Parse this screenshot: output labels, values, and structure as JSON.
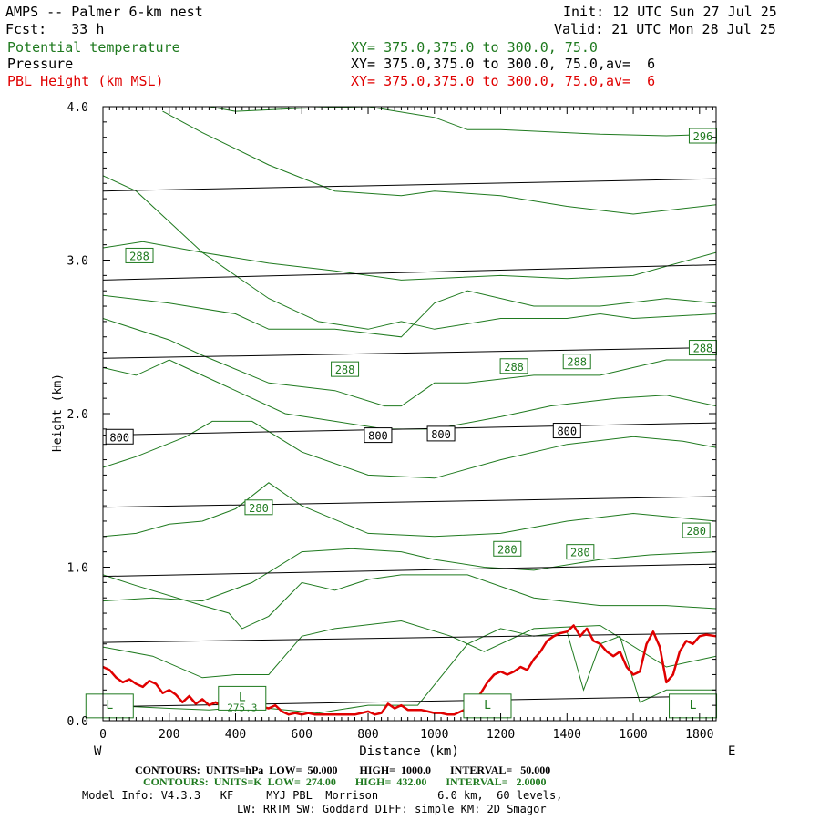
{
  "header": {
    "title": "AMPS -- Palmer 6-km nest",
    "fcst": "Fcst:   33 h",
    "init": "Init: 12 UTC Sun 27 Jul 25",
    "valid": "Valid: 21 UTC Mon 28 Jul 25",
    "field1_name": "Potential temperature",
    "field1_xy": "XY= 375.0,375.0 to 300.0, 75.0",
    "field2_name": "Pressure",
    "field2_xy": "XY= 375.0,375.0 to 300.0, 75.0,av=  6",
    "field3_name": "PBL Height (km MSL)",
    "field3_xy": "XY= 375.0,375.0 to 300.0, 75.0,av=  6"
  },
  "footer": {
    "contours_p": "CONTOURS:  UNITS=hPa  LOW=  50.000        HIGH=  1000.0       INTERVAL=   50.000",
    "contours_t": "CONTOURS:  UNITS=K  LOW=  274.00       HIGH=  432.00       INTERVAL=   2.0000",
    "model1": "Model Info: V4.3.3   KF     MYJ PBL  Morrison         6.0 km,  60 levels,",
    "model2": "LW: RRTM SW: Goddard DIFF: simple KM: 2D Smagor"
  },
  "colors": {
    "theta": "#1f7a1f",
    "pressure": "#000000",
    "pbl": "#e00000"
  },
  "chart_data": {
    "type": "line",
    "xlabel": "Distance (km)",
    "ylabel": "Height (km)",
    "xlim": [
      0,
      1850
    ],
    "ylim": [
      0,
      4.0
    ],
    "x_ticks": [
      0,
      200,
      400,
      600,
      800,
      1000,
      1200,
      1400,
      1600,
      1800
    ],
    "y_ticks": [
      0.0,
      1.0,
      2.0,
      3.0,
      4.0
    ],
    "x_tick_labels": [
      "0",
      "200",
      "400",
      "600",
      "800",
      "1000",
      "1200",
      "1400",
      "1600",
      "1800"
    ],
    "y_tick_labels": [
      "0.0",
      "1.0",
      "2.0",
      "3.0",
      "4.0"
    ],
    "left_end": "W",
    "right_end": "E",
    "pressure_contours": [
      {
        "x": [
          0,
          1850
        ],
        "y": [
          3.45,
          3.53
        ]
      },
      {
        "x": [
          0,
          1850
        ],
        "y": [
          2.87,
          2.97
        ]
      },
      {
        "x": [
          0,
          1850
        ],
        "y": [
          2.36,
          2.43
        ]
      },
      {
        "x": [
          0,
          1850
        ],
        "y": [
          1.86,
          1.94
        ]
      },
      {
        "x": [
          0,
          1850
        ],
        "y": [
          1.39,
          1.46
        ]
      },
      {
        "x": [
          0,
          1850
        ],
        "y": [
          0.94,
          1.02
        ]
      },
      {
        "x": [
          0,
          1850
        ],
        "y": [
          0.51,
          0.57
        ]
      },
      {
        "x": [
          0,
          1850
        ],
        "y": [
          0.09,
          0.16
        ]
      }
    ],
    "pressure_labels": [
      {
        "text": "800",
        "x": 50,
        "y": 1.85
      },
      {
        "text": "800",
        "x": 830,
        "y": 1.86
      },
      {
        "text": "800",
        "x": 1020,
        "y": 1.87
      },
      {
        "text": "800",
        "x": 1400,
        "y": 1.89
      }
    ],
    "theta_contours": [
      {
        "x": [
          180,
          300,
          500,
          700,
          900,
          1000,
          1200,
          1400,
          1600,
          1850
        ],
        "y": [
          3.97,
          3.83,
          3.62,
          3.45,
          3.42,
          3.45,
          3.42,
          3.35,
          3.3,
          3.36
        ]
      },
      {
        "x": [
          320,
          400,
          600,
          800,
          1000,
          1100,
          1200,
          1500,
          1700,
          1850
        ],
        "y": [
          4.0,
          3.97,
          3.99,
          4.0,
          3.93,
          3.85,
          3.85,
          3.82,
          3.81,
          3.82
        ]
      },
      {
        "x": [
          0,
          100,
          200,
          300,
          400,
          500,
          650,
          800,
          900,
          1000,
          1200,
          1400,
          1500,
          1600,
          1850
        ],
        "y": [
          3.55,
          3.45,
          3.25,
          3.05,
          2.9,
          2.75,
          2.6,
          2.55,
          2.6,
          2.55,
          2.62,
          2.62,
          2.65,
          2.62,
          2.65
        ]
      },
      {
        "x": [
          0,
          120,
          300,
          500,
          700,
          900,
          1000,
          1200,
          1400,
          1600,
          1850
        ],
        "y": [
          3.08,
          3.12,
          3.05,
          2.98,
          2.93,
          2.87,
          2.88,
          2.9,
          2.88,
          2.9,
          3.05
        ]
      },
      {
        "x": [
          0,
          200,
          400,
          500,
          700,
          900,
          1000,
          1100,
          1300,
          1500,
          1700,
          1850
        ],
        "y": [
          2.77,
          2.72,
          2.65,
          2.55,
          2.55,
          2.5,
          2.72,
          2.8,
          2.7,
          2.7,
          2.75,
          2.72
        ]
      },
      {
        "x": [
          0,
          200,
          300,
          500,
          700,
          850,
          900,
          1000,
          1100,
          1300,
          1500,
          1700,
          1850
        ],
        "y": [
          2.62,
          2.48,
          2.38,
          2.2,
          2.15,
          2.05,
          2.05,
          2.2,
          2.2,
          2.25,
          2.25,
          2.35,
          2.35
        ]
      },
      {
        "x": [
          0,
          100,
          200,
          250,
          400,
          550,
          700,
          850,
          1000,
          1200,
          1350,
          1550,
          1700,
          1850
        ],
        "y": [
          2.3,
          2.25,
          2.35,
          2.3,
          2.15,
          2.0,
          1.95,
          1.9,
          1.9,
          1.98,
          2.05,
          2.1,
          2.12,
          2.05
        ]
      },
      {
        "x": [
          0,
          100,
          250,
          330,
          450,
          600,
          800,
          1000,
          1200,
          1400,
          1600,
          1750,
          1850
        ],
        "y": [
          1.65,
          1.72,
          1.85,
          1.95,
          1.95,
          1.75,
          1.6,
          1.58,
          1.7,
          1.8,
          1.85,
          1.82,
          1.78
        ]
      },
      {
        "x": [
          0,
          100,
          200,
          300,
          400,
          500,
          600,
          800,
          1000,
          1200,
          1400,
          1600,
          1700,
          1850
        ],
        "y": [
          1.2,
          1.22,
          1.28,
          1.3,
          1.38,
          1.55,
          1.4,
          1.22,
          1.2,
          1.22,
          1.3,
          1.35,
          1.33,
          1.3
        ]
      },
      {
        "x": [
          0,
          150,
          300,
          450,
          600,
          750,
          900,
          1000,
          1150,
          1300,
          1500,
          1650,
          1850
        ],
        "y": [
          0.78,
          0.8,
          0.78,
          0.9,
          1.1,
          1.12,
          1.1,
          1.05,
          1.0,
          0.98,
          1.05,
          1.08,
          1.1
        ]
      },
      {
        "x": [
          0,
          100,
          300,
          380,
          420,
          500,
          600,
          700,
          800,
          900,
          1100,
          1300,
          1500,
          1700,
          1850
        ],
        "y": [
          0.95,
          0.88,
          0.75,
          0.7,
          0.6,
          0.68,
          0.9,
          0.85,
          0.92,
          0.95,
          0.95,
          0.8,
          0.75,
          0.75,
          0.73
        ]
      },
      {
        "x": [
          0,
          150,
          300,
          400,
          500,
          600,
          700,
          900,
          1050,
          1150,
          1300,
          1500,
          1700,
          1850
        ],
        "y": [
          0.48,
          0.42,
          0.28,
          0.3,
          0.3,
          0.55,
          0.6,
          0.65,
          0.55,
          0.45,
          0.6,
          0.62,
          0.35,
          0.42
        ]
      },
      {
        "x": [
          0,
          200,
          320,
          380,
          500,
          650,
          800,
          950,
          1100,
          1200,
          1300,
          1400,
          1450,
          1500,
          1560,
          1620,
          1700,
          1850
        ],
        "y": [
          0.1,
          0.08,
          0.07,
          0.08,
          0.08,
          0.05,
          0.1,
          0.1,
          0.5,
          0.6,
          0.55,
          0.58,
          0.2,
          0.5,
          0.55,
          0.12,
          0.2,
          0.2
        ]
      }
    ],
    "theta_labels": [
      {
        "text": "296",
        "x": 1810,
        "y": 3.81
      },
      {
        "text": "288",
        "x": 110,
        "y": 3.03
      },
      {
        "text": "288",
        "x": 730,
        "y": 2.29
      },
      {
        "text": "288",
        "x": 1240,
        "y": 2.31
      },
      {
        "text": "288",
        "x": 1430,
        "y": 2.34
      },
      {
        "text": "288",
        "x": 1810,
        "y": 2.43
      },
      {
        "text": "280",
        "x": 470,
        "y": 1.39
      },
      {
        "text": "280",
        "x": 1220,
        "y": 1.12
      },
      {
        "text": "280",
        "x": 1440,
        "y": 1.1
      },
      {
        "text": "280",
        "x": 1790,
        "y": 1.24
      }
    ],
    "low_markers": [
      {
        "text": "L",
        "x": 420,
        "y": 0.14,
        "value": "275.3"
      },
      {
        "text": "L",
        "x": 1160,
        "y": 0.09,
        "value": ""
      },
      {
        "text": "L",
        "x": 1780,
        "y": 0.09,
        "value": ""
      },
      {
        "text": "L",
        "x": 20,
        "y": 0.09,
        "value": ""
      }
    ],
    "pbl_height": {
      "x": [
        0,
        20,
        40,
        60,
        80,
        100,
        120,
        140,
        160,
        180,
        200,
        220,
        240,
        260,
        280,
        300,
        320,
        340,
        360,
        380,
        400,
        420,
        440,
        460,
        480,
        500,
        520,
        540,
        560,
        580,
        600,
        620,
        640,
        660,
        680,
        700,
        720,
        740,
        760,
        780,
        800,
        820,
        840,
        860,
        880,
        900,
        920,
        940,
        960,
        980,
        1000,
        1020,
        1040,
        1060,
        1080,
        1100,
        1120,
        1140,
        1160,
        1180,
        1200,
        1220,
        1240,
        1260,
        1280,
        1300,
        1320,
        1340,
        1360,
        1380,
        1400,
        1420,
        1440,
        1460,
        1480,
        1500,
        1520,
        1540,
        1560,
        1580,
        1600,
        1620,
        1640,
        1660,
        1680,
        1700,
        1720,
        1740,
        1760,
        1780,
        1800,
        1820,
        1850
      ],
      "y": [
        0.35,
        0.33,
        0.28,
        0.25,
        0.27,
        0.24,
        0.22,
        0.26,
        0.24,
        0.18,
        0.2,
        0.17,
        0.12,
        0.16,
        0.11,
        0.14,
        0.1,
        0.12,
        0.09,
        0.12,
        0.1,
        0.12,
        0.08,
        0.11,
        0.09,
        0.08,
        0.1,
        0.06,
        0.04,
        0.05,
        0.04,
        0.05,
        0.04,
        0.04,
        0.04,
        0.04,
        0.04,
        0.04,
        0.04,
        0.05,
        0.06,
        0.04,
        0.05,
        0.11,
        0.08,
        0.1,
        0.07,
        0.07,
        0.07,
        0.06,
        0.05,
        0.05,
        0.04,
        0.04,
        0.06,
        0.08,
        0.12,
        0.18,
        0.25,
        0.3,
        0.32,
        0.3,
        0.32,
        0.35,
        0.33,
        0.4,
        0.45,
        0.52,
        0.55,
        0.57,
        0.58,
        0.62,
        0.55,
        0.6,
        0.52,
        0.5,
        0.45,
        0.42,
        0.45,
        0.35,
        0.3,
        0.32,
        0.5,
        0.58,
        0.48,
        0.25,
        0.3,
        0.45,
        0.52,
        0.5,
        0.55,
        0.56,
        0.55
      ]
    }
  }
}
